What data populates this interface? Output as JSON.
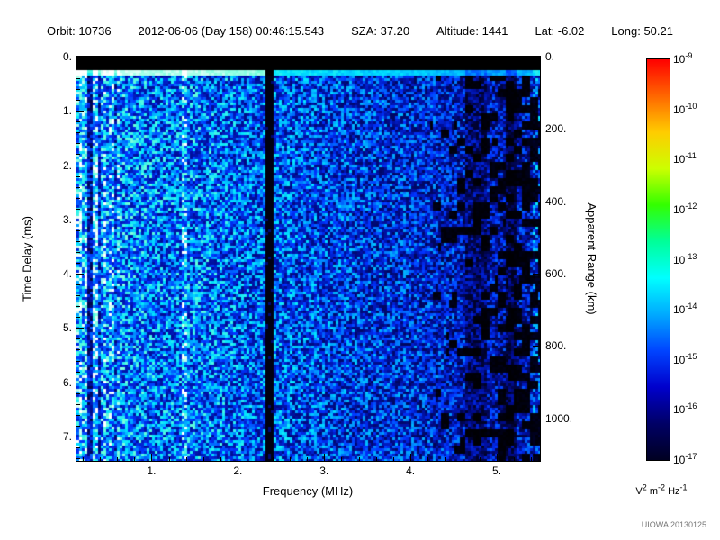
{
  "header": {
    "items": [
      "Orbit: 10736",
      "2012-06-06 (Day 158) 00:46:15.543",
      "SZA:  37.20",
      "Altitude:    1441",
      "Lat:  -6.02",
      "Long:  50.21"
    ]
  },
  "credit": "UIOWA 20130125",
  "chart_data": {
    "type": "heatmap",
    "title": "",
    "xlabel": "Frequency (MHz)",
    "ylabel_left": "Time Delay (ms)",
    "ylabel_right": "Apparent Range (km)",
    "x_range": [
      0.13,
      5.5
    ],
    "y_range": [
      0,
      7.45
    ],
    "km_per_ms": 150,
    "x_ticks": [
      {
        "v": 1,
        "label": "1."
      },
      {
        "v": 2,
        "label": "2."
      },
      {
        "v": 3,
        "label": "3."
      },
      {
        "v": 4,
        "label": "4."
      },
      {
        "v": 5,
        "label": "5."
      }
    ],
    "y_ticks": [
      {
        "v": 0,
        "label": "0."
      },
      {
        "v": 1,
        "label": "1."
      },
      {
        "v": 2,
        "label": "2."
      },
      {
        "v": 3,
        "label": "3."
      },
      {
        "v": 4,
        "label": "4."
      },
      {
        "v": 5,
        "label": "5."
      },
      {
        "v": 6,
        "label": "6."
      },
      {
        "v": 7,
        "label": "7."
      }
    ],
    "right_ticks": [
      {
        "km": 0,
        "label": "0."
      },
      {
        "km": 200,
        "label": "200."
      },
      {
        "km": 400,
        "label": "400."
      },
      {
        "km": 600,
        "label": "600."
      },
      {
        "km": 800,
        "label": "800."
      },
      {
        "km": 1000,
        "label": "1000."
      }
    ],
    "colorbar": {
      "exponents": [
        "-9",
        "-10",
        "-11",
        "-12",
        "-13",
        "-14",
        "-15",
        "-16",
        "-17"
      ],
      "tick_base": "10",
      "unit_parts": [
        {
          "base": "V",
          "sup": "2"
        },
        {
          "base": "m",
          "sup": "-2"
        },
        {
          "base": "Hz",
          "sup": "-1"
        }
      ],
      "gradient": [
        "#ff0000",
        "#ff6600",
        "#ffcc00",
        "#ccff00",
        "#33ff00",
        "#00ff99",
        "#00ffff",
        "#00aaff",
        "#0044ff",
        "#0000cc",
        "#000066",
        "#000022"
      ]
    },
    "spectrogram": {
      "seed": 42,
      "top_black_ms": 0.2,
      "bright_line_ms": 0.3,
      "gap": [
        2.29,
        2.4
      ],
      "dropout_start": 4.2,
      "dropout_rate": 0.5,
      "profile": [
        [
          0.13,
          0.62
        ],
        [
          0.25,
          0.52
        ],
        [
          0.45,
          0.5
        ],
        [
          0.8,
          0.46
        ],
        [
          1.1,
          0.42
        ],
        [
          1.5,
          0.44
        ],
        [
          1.9,
          0.4
        ],
        [
          2.2,
          0.37
        ],
        [
          2.5,
          0.37
        ],
        [
          3.0,
          0.33
        ],
        [
          3.6,
          0.3
        ],
        [
          4.2,
          0.27
        ],
        [
          4.7,
          0.22
        ],
        [
          5.1,
          0.2
        ],
        [
          5.5,
          0.25
        ]
      ],
      "stripes": [
        {
          "c": 0.16,
          "w": 0.03,
          "b": 0.25
        },
        {
          "c": 0.22,
          "w": 0.02,
          "b": 0.12
        },
        {
          "c": 0.27,
          "w": 0.018,
          "b": -0.3
        },
        {
          "c": 0.33,
          "w": 0.028,
          "b": 0.2
        },
        {
          "c": 0.38,
          "w": 0.014,
          "b": -0.2
        },
        {
          "c": 0.45,
          "w": 0.02,
          "b": 0.15
        },
        {
          "c": 0.49,
          "w": 0.012,
          "b": -0.16
        },
        {
          "c": 0.52,
          "w": 0.018,
          "b": 0.12
        },
        {
          "c": 0.57,
          "w": 0.012,
          "b": -0.15
        },
        {
          "c": 0.6,
          "w": 0.018,
          "b": 0.1
        },
        {
          "c": 1.36,
          "w": 0.04,
          "b": 0.22
        },
        {
          "c": 4.75,
          "w": 0.12,
          "b": -0.08
        },
        {
          "c": 5.15,
          "w": 0.06,
          "b": -0.1
        },
        {
          "c": 5.45,
          "w": 0.05,
          "b": 0.12
        }
      ],
      "cmap": [
        [
          0.0,
          "#000000"
        ],
        [
          0.06,
          "#000233"
        ],
        [
          0.15,
          "#000d99"
        ],
        [
          0.28,
          "#0033ff"
        ],
        [
          0.42,
          "#0099ff"
        ],
        [
          0.58,
          "#00e5ff"
        ],
        [
          0.75,
          "#66ffd9"
        ],
        [
          0.88,
          "#bbffee"
        ],
        [
          1.0,
          "#ffffff"
        ]
      ]
    }
  }
}
